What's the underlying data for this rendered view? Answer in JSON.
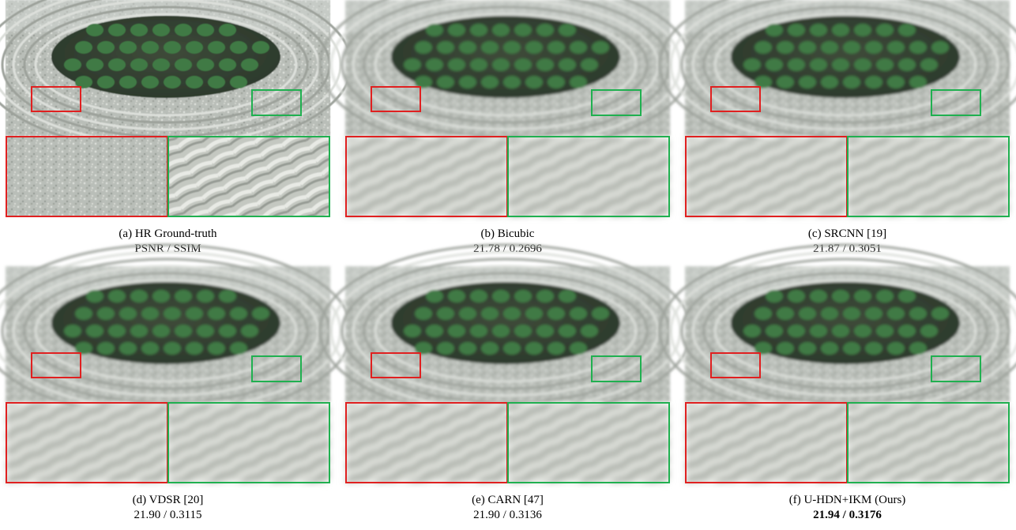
{
  "figure": {
    "panels": [
      {
        "label": "(a) HR Ground-truth",
        "metrics": "PSNR / SSIM"
      },
      {
        "label": "(b) Bicubic",
        "metrics": "21.78 / 0.2696"
      },
      {
        "label": "(c) SRCNN [19]",
        "metrics": "21.87 / 0.3051"
      },
      {
        "label": "(d) VDSR [20]",
        "metrics": "21.90 / 0.3115"
      },
      {
        "label": "(e) CARN [47]",
        "metrics": "21.90 / 0.3136"
      },
      {
        "label": "(f) U-HDN+IKM (Ours)",
        "metrics": "21.94 / 0.3176",
        "bold": true
      }
    ]
  }
}
